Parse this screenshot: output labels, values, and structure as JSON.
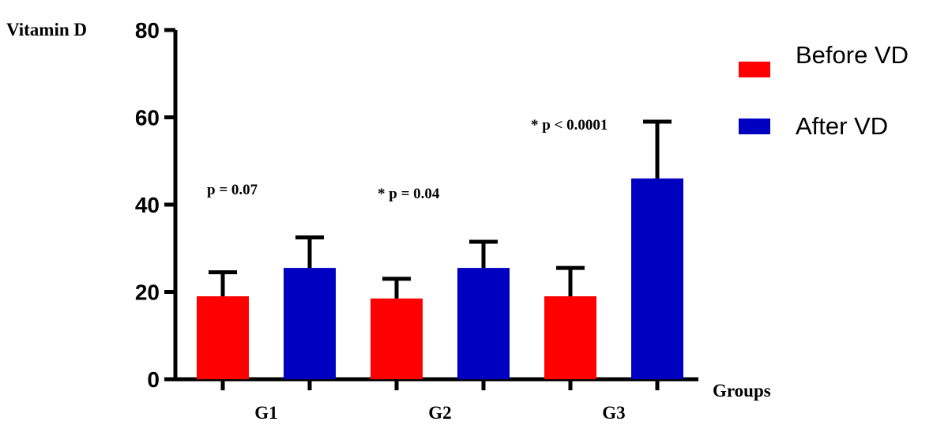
{
  "chart_data": {
    "type": "bar",
    "title": "",
    "ylabel": "Vitamin D",
    "xlabel": "Groups",
    "ylim": [
      0,
      80
    ],
    "yticks": [
      0,
      20,
      40,
      60,
      80
    ],
    "categories": [
      "G1",
      "G2",
      "G3"
    ],
    "series": [
      {
        "name": "Before VD",
        "color": "#ff0000",
        "values": [
          19,
          18.5,
          19
        ],
        "errors": [
          5.5,
          4.5,
          6.5
        ]
      },
      {
        "name": "After VD",
        "color": "#0000c0",
        "values": [
          25.5,
          25.5,
          46
        ],
        "errors": [
          7,
          6,
          13
        ]
      }
    ],
    "annotations": [
      "p = 0.07",
      "* p = 0.04",
      "* p < 0.0001"
    ],
    "legend": "top-right",
    "grid": false
  }
}
